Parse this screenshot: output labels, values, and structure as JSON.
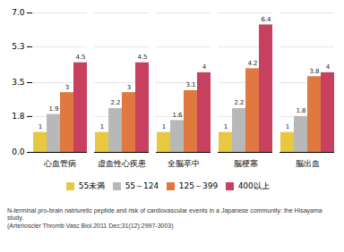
{
  "chart_data": {
    "type": "bar",
    "categories": [
      "心血管病",
      "虚血性心疾患",
      "全脳卒中",
      "脳梗塞",
      "脳出血"
    ],
    "series": [
      {
        "name": "55未満",
        "color": "#e8c840",
        "values": [
          1,
          1,
          1,
          1,
          1
        ]
      },
      {
        "name": "55～124",
        "color": "#b8b8b8",
        "values": [
          1.9,
          2.2,
          1.6,
          2.2,
          1.8
        ]
      },
      {
        "name": "125～399",
        "color": "#e07840",
        "values": [
          3,
          3,
          3.1,
          4.2,
          3.8
        ]
      },
      {
        "name": "400以上",
        "color": "#c84060",
        "values": [
          4.5,
          4.5,
          4,
          6.4,
          4
        ]
      }
    ],
    "ylim": [
      0,
      7
    ],
    "yticks": [
      0,
      1.8,
      3.5,
      5.3,
      7
    ],
    "grid": true,
    "data_labels": true,
    "legend": "bottom",
    "caption": "N-terminal pro-brain natriuretic peptide and risk of cardiovascular events in a Japanese community: the Hisayama study.\n(Arterioscler Thromb Vasc Biol.2011 Dec;31(12):2997-3003)"
  }
}
